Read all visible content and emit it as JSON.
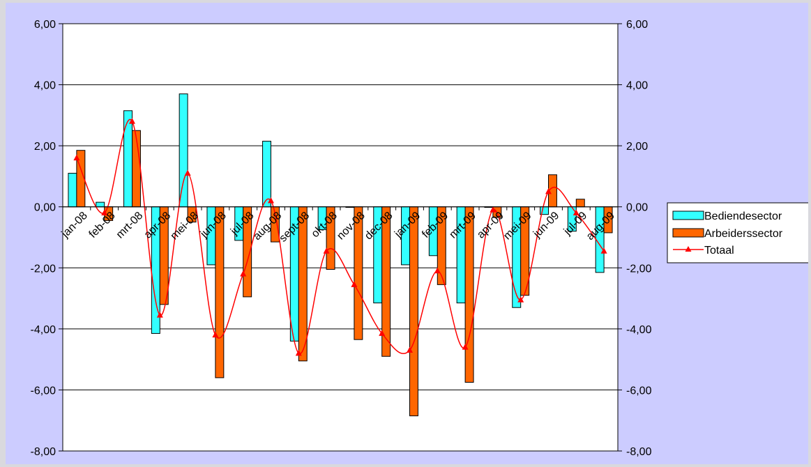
{
  "chart_data": {
    "type": "bar",
    "categories": [
      "jan-08",
      "feb-08",
      "mrt-08",
      "apr-08",
      "mei-08",
      "jun-08",
      "jul-08",
      "aug-08",
      "sept-08",
      "okt-08",
      "nov-08",
      "dec-08",
      "jan-09",
      "feb-09",
      "mrt-09",
      "apr-09",
      "mei-09",
      "jun-09",
      "jul-09",
      "aug-09"
    ],
    "ylim": [
      -8,
      6
    ],
    "yticks": [
      "6,00",
      "4,00",
      "2,00",
      "0,00",
      "-2,00",
      "-4,00",
      "-6,00",
      "-8,00"
    ],
    "grid": true,
    "legend_position": "right",
    "series": [
      {
        "name": "Bediendesector",
        "kind": "bar",
        "color": "#33ffff",
        "values": [
          1.1,
          0.15,
          3.15,
          -4.15,
          3.7,
          -1.9,
          -1.1,
          2.15,
          -4.4,
          -0.75,
          0.0,
          -3.15,
          -1.9,
          -1.6,
          -3.15,
          0.0,
          -3.3,
          -0.25,
          -0.8,
          -2.15
        ]
      },
      {
        "name": "Arbeiderssector",
        "kind": "bar",
        "color": "#ff6600",
        "values": [
          1.85,
          -0.45,
          2.5,
          -3.2,
          -0.5,
          -5.6,
          -2.95,
          -1.15,
          -5.05,
          -2.05,
          -4.35,
          -4.9,
          -6.85,
          -2.55,
          -5.75,
          -0.35,
          -2.9,
          1.05,
          0.25,
          -0.85
        ]
      },
      {
        "name": "Totaal",
        "kind": "line",
        "color": "#ff0000",
        "values": [
          1.6,
          -0.2,
          2.8,
          -3.55,
          1.1,
          -4.2,
          -2.2,
          0.2,
          -4.8,
          -1.45,
          -2.55,
          -4.15,
          -4.7,
          -2.1,
          -4.6,
          -0.1,
          -3.05,
          0.5,
          -0.2,
          -1.45
        ]
      }
    ]
  }
}
